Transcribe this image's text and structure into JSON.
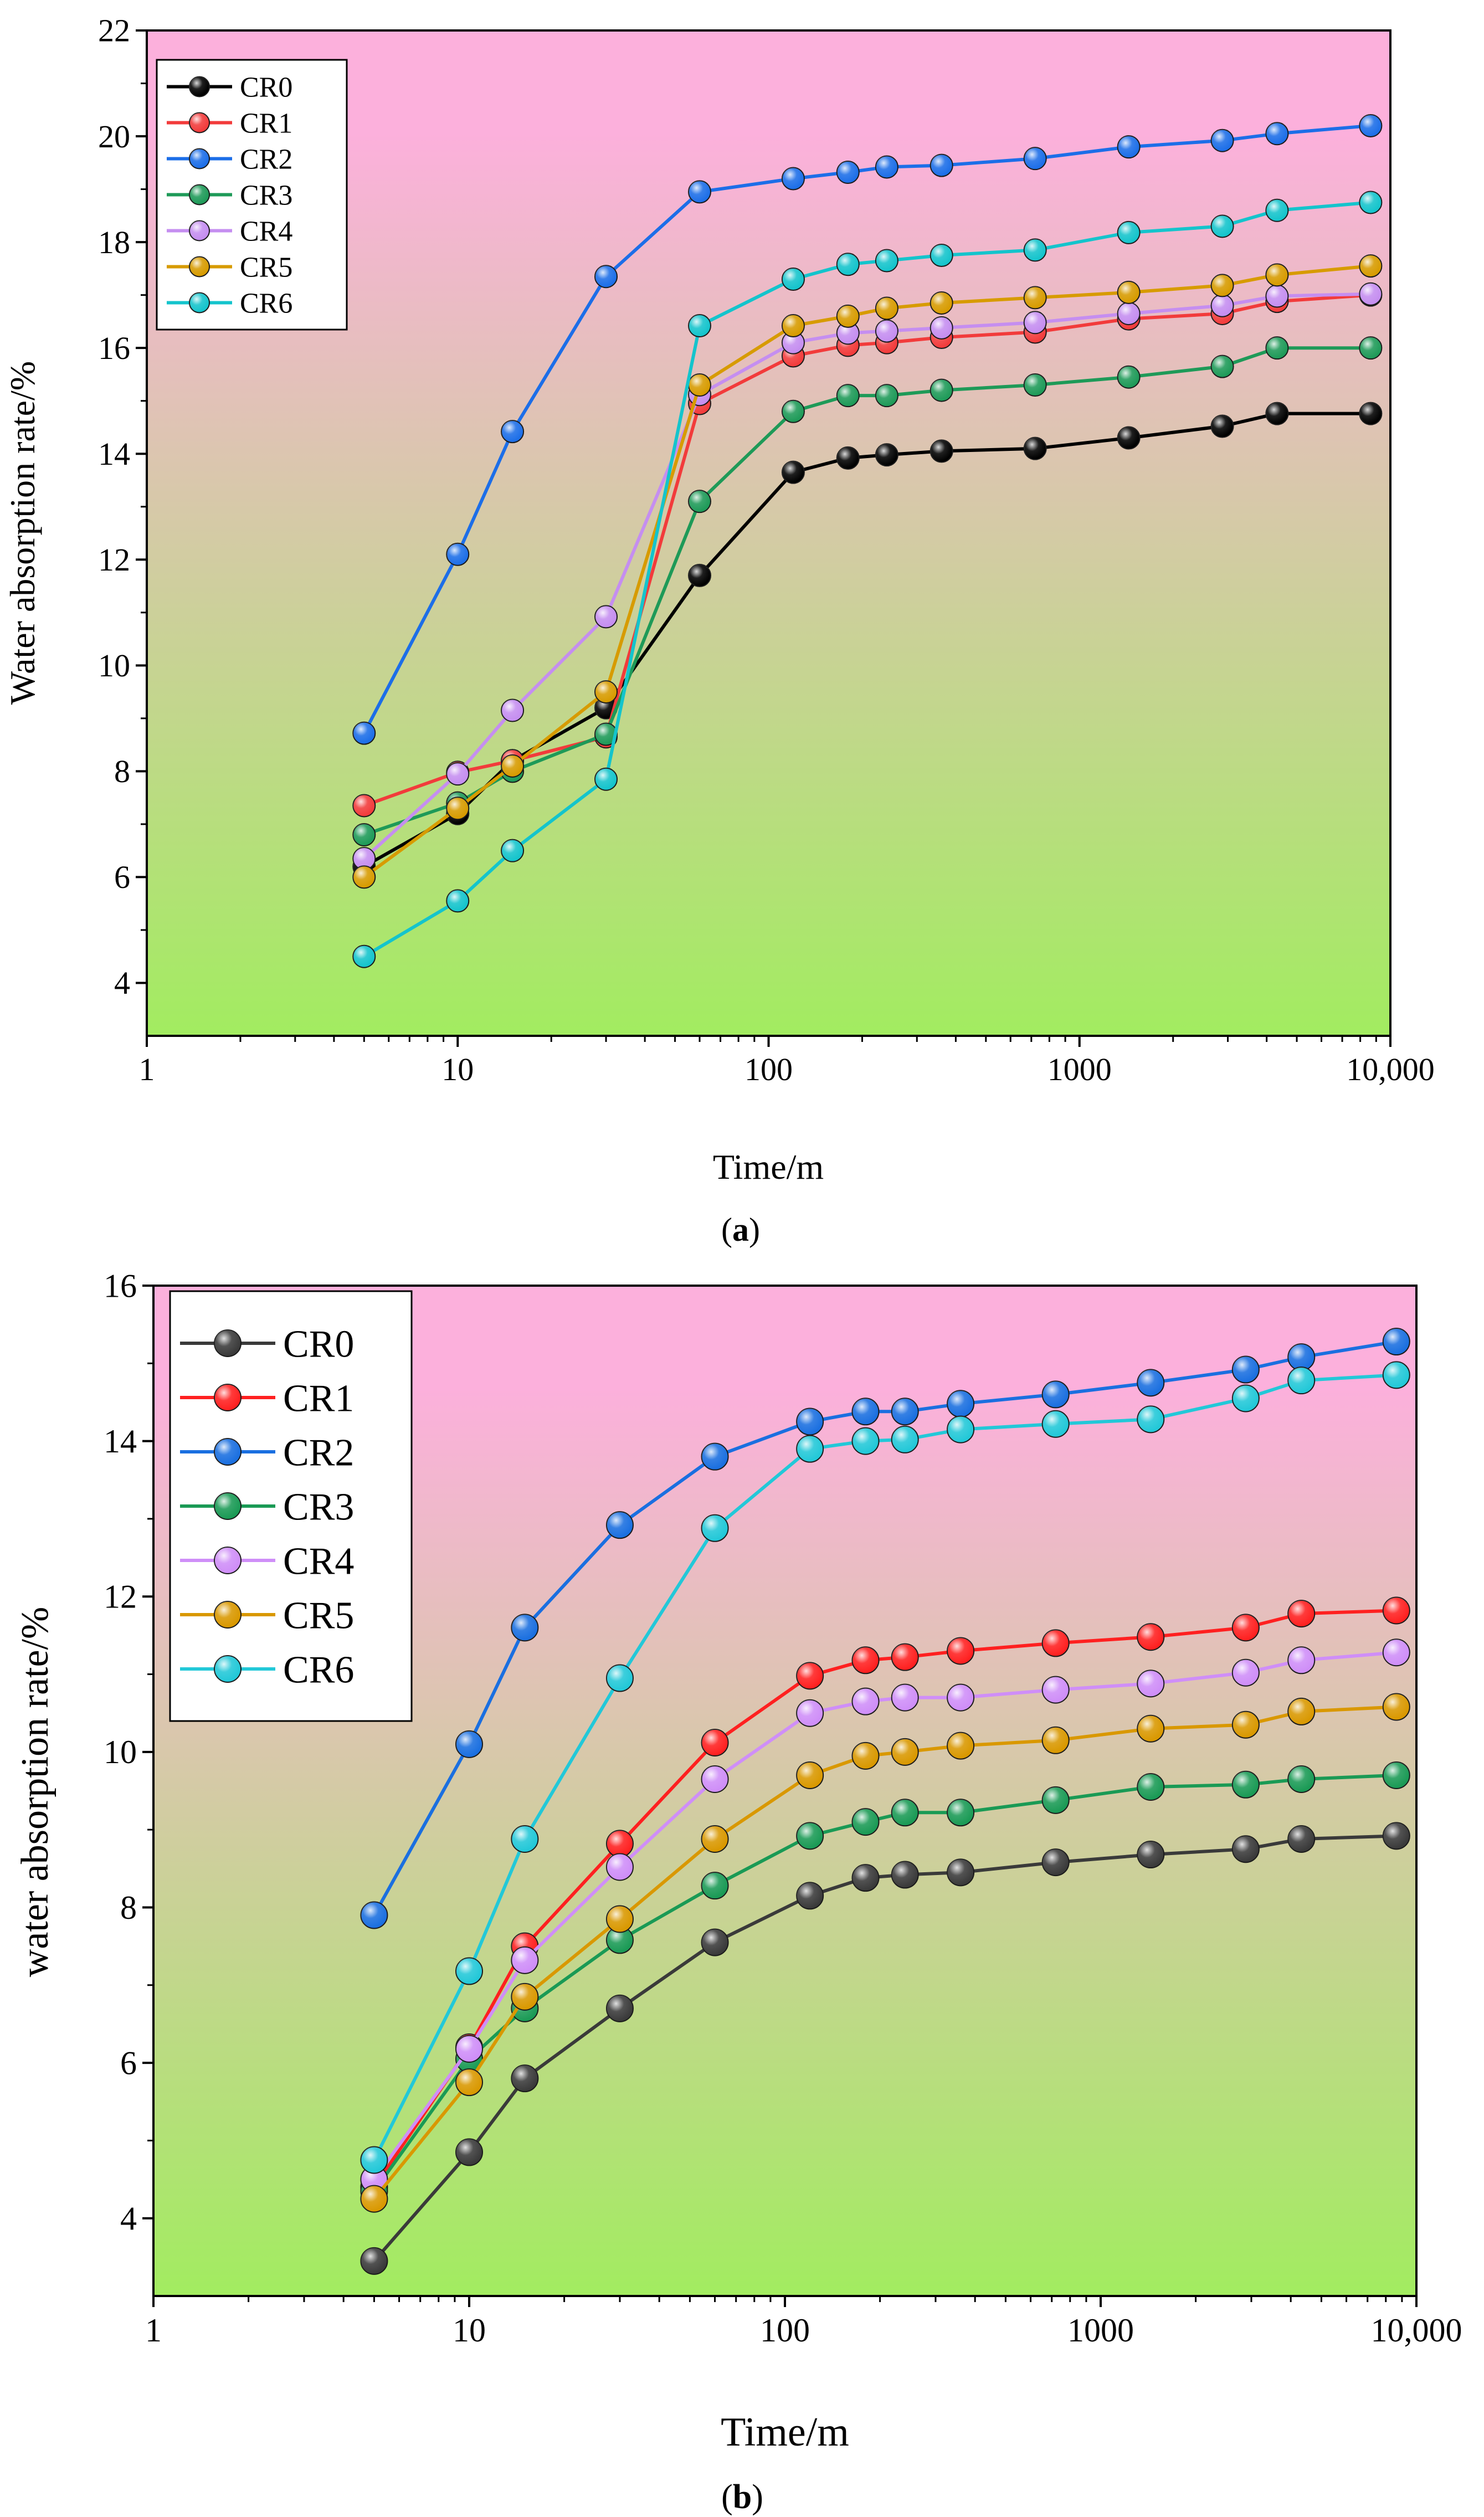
{
  "figure": {
    "panels": [
      {
        "caption_open": "(",
        "caption_letter": "a",
        "caption_close": ")",
        "gradient_top": "#fcb0dc",
        "gradient_bottom": "#a2ec60"
      },
      {
        "caption_open": "(",
        "caption_letter": "b",
        "caption_close": ")",
        "gradient_top": "#fcb0dc",
        "gradient_bottom": "#a2ec60"
      }
    ]
  },
  "chart_data": [
    {
      "type": "line",
      "xscale": "log",
      "xlabel": "Time/m",
      "ylabel": "Water absorption rate/%",
      "xlim": [
        1,
        10000
      ],
      "ylim": [
        3,
        22
      ],
      "xticks": [
        {
          "value": 1,
          "label": "1"
        },
        {
          "value": 10,
          "label": "10"
        },
        {
          "value": 100,
          "label": "100"
        },
        {
          "value": 1000,
          "label": "1000"
        },
        {
          "value": 10000,
          "label": "10,000"
        }
      ],
      "yticks": [
        {
          "value": 4,
          "label": "4"
        },
        {
          "value": 6,
          "label": "6"
        },
        {
          "value": 8,
          "label": "8"
        },
        {
          "value": 10,
          "label": "10"
        },
        {
          "value": 12,
          "label": "12"
        },
        {
          "value": 14,
          "label": "14"
        },
        {
          "value": 16,
          "label": "16"
        },
        {
          "value": 18,
          "label": "18"
        },
        {
          "value": 20,
          "label": "20"
        },
        {
          "value": 22,
          "label": "22"
        }
      ],
      "legend_position": "top-left",
      "x": [
        5,
        10,
        15,
        30,
        60,
        120,
        180,
        240,
        360,
        720,
        1440,
        2880,
        4320,
        8640
      ],
      "series": [
        {
          "name": "CR0",
          "color": "#000000",
          "values": [
            6.2,
            7.2,
            8.2,
            9.2,
            11.7,
            13.65,
            13.92,
            13.98,
            14.05,
            14.1,
            14.3,
            14.52,
            14.76,
            14.76
          ]
        },
        {
          "name": "CR1",
          "color": "#f23b3b",
          "values": [
            7.35,
            7.98,
            8.2,
            8.65,
            14.95,
            15.85,
            16.05,
            16.1,
            16.2,
            16.3,
            16.55,
            16.65,
            16.88,
            17.0
          ]
        },
        {
          "name": "CR2",
          "color": "#1c6ee8",
          "values": [
            8.72,
            12.1,
            14.42,
            17.35,
            18.95,
            19.2,
            19.32,
            19.42,
            19.45,
            19.58,
            19.8,
            19.92,
            20.05,
            20.2
          ]
        },
        {
          "name": "CR3",
          "color": "#1e9a58",
          "values": [
            6.8,
            7.4,
            8.0,
            8.7,
            13.1,
            14.8,
            15.1,
            15.1,
            15.2,
            15.3,
            15.45,
            15.65,
            16.0,
            16.0
          ]
        },
        {
          "name": "CR4",
          "color": "#c58ef0",
          "values": [
            6.35,
            7.95,
            9.15,
            10.92,
            15.12,
            16.1,
            16.28,
            16.32,
            16.38,
            16.48,
            16.65,
            16.8,
            16.98,
            17.02
          ]
        },
        {
          "name": "CR5",
          "color": "#d79b00",
          "values": [
            6.0,
            7.3,
            8.1,
            9.5,
            15.3,
            16.42,
            16.6,
            16.75,
            16.85,
            16.95,
            17.05,
            17.18,
            17.38,
            17.55
          ]
        },
        {
          "name": "CR6",
          "color": "#14c4cc",
          "values": [
            4.5,
            5.55,
            6.5,
            7.85,
            16.42,
            17.3,
            17.58,
            17.65,
            17.75,
            17.85,
            18.18,
            18.3,
            18.6,
            18.75
          ]
        }
      ]
    },
    {
      "type": "line",
      "xscale": "log",
      "xlabel": "Time/m",
      "ylabel": "water absorption rate/%",
      "xlim": [
        1,
        10000
      ],
      "ylim": [
        3,
        16
      ],
      "xticks": [
        {
          "value": 1,
          "label": "1"
        },
        {
          "value": 10,
          "label": "10"
        },
        {
          "value": 100,
          "label": "100"
        },
        {
          "value": 1000,
          "label": "1000"
        },
        {
          "value": 10000,
          "label": "10,000"
        }
      ],
      "yticks": [
        {
          "value": 4,
          "label": "4"
        },
        {
          "value": 6,
          "label": "6"
        },
        {
          "value": 8,
          "label": "8"
        },
        {
          "value": 10,
          "label": "10"
        },
        {
          "value": 12,
          "label": "12"
        },
        {
          "value": 14,
          "label": "14"
        },
        {
          "value": 16,
          "label": "16"
        }
      ],
      "legend_position": "top-left",
      "x": [
        5,
        10,
        15,
        30,
        60,
        120,
        180,
        240,
        360,
        720,
        1440,
        2880,
        4320,
        8640
      ],
      "series": [
        {
          "name": "CR0",
          "color": "#3a3a3a",
          "values": [
            3.45,
            4.85,
            5.8,
            6.7,
            7.55,
            8.15,
            8.38,
            8.42,
            8.45,
            8.58,
            8.68,
            8.75,
            8.88,
            8.92
          ]
        },
        {
          "name": "CR1",
          "color": "#ff2020",
          "values": [
            4.4,
            6.2,
            7.5,
            8.82,
            10.12,
            10.98,
            11.18,
            11.22,
            11.3,
            11.4,
            11.48,
            11.6,
            11.78,
            11.82
          ]
        },
        {
          "name": "CR2",
          "color": "#1a6fe0",
          "values": [
            7.9,
            10.1,
            11.6,
            12.92,
            13.8,
            14.25,
            14.38,
            14.38,
            14.48,
            14.6,
            14.75,
            14.92,
            15.08,
            15.28
          ]
        },
        {
          "name": "CR3",
          "color": "#1a9a55",
          "values": [
            4.35,
            6.05,
            6.7,
            7.58,
            8.28,
            8.92,
            9.1,
            9.22,
            9.22,
            9.38,
            9.55,
            9.58,
            9.65,
            9.7
          ]
        },
        {
          "name": "CR4",
          "color": "#cf8ef8",
          "values": [
            4.5,
            6.18,
            7.32,
            8.52,
            9.65,
            10.5,
            10.65,
            10.7,
            10.7,
            10.8,
            10.88,
            11.02,
            11.18,
            11.28
          ]
        },
        {
          "name": "CR5",
          "color": "#d99800",
          "values": [
            4.25,
            5.75,
            6.85,
            7.85,
            8.88,
            9.7,
            9.95,
            10.0,
            10.08,
            10.15,
            10.3,
            10.35,
            10.52,
            10.58
          ]
        },
        {
          "name": "CR6",
          "color": "#22c8d8",
          "values": [
            4.75,
            7.18,
            8.88,
            10.95,
            12.88,
            13.9,
            14.0,
            14.02,
            14.15,
            14.22,
            14.28,
            14.55,
            14.78,
            14.85
          ]
        }
      ]
    }
  ]
}
